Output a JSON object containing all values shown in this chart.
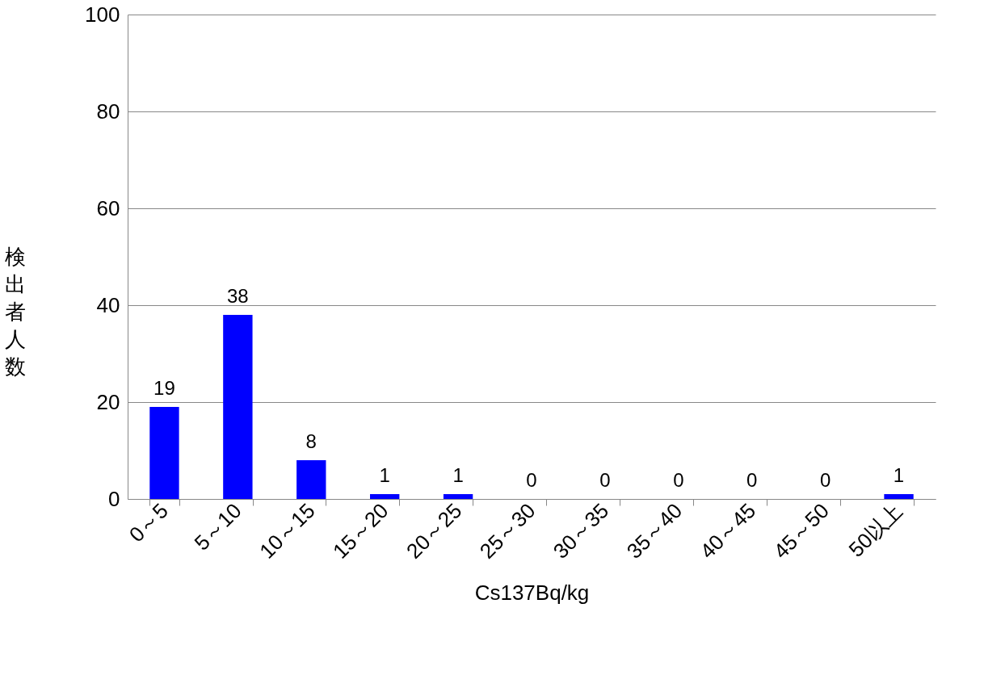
{
  "chart_data": {
    "type": "bar",
    "xlabel": "Cs137Bq/kg",
    "ylabel": "検出者人数",
    "categories": [
      "0～5",
      "5～10",
      "10～15",
      "15～20",
      "20～25",
      "25～30",
      "30～35",
      "35～40",
      "40～45",
      "45～50",
      "50以上"
    ],
    "values": [
      19,
      38,
      8,
      1,
      1,
      0,
      0,
      0,
      0,
      0,
      1
    ],
    "color": "#0000ff",
    "ylim": [
      0,
      100
    ],
    "yticks": [
      0,
      20,
      40,
      60,
      80,
      100
    ],
    "grid": "y",
    "data_labels": true
  }
}
